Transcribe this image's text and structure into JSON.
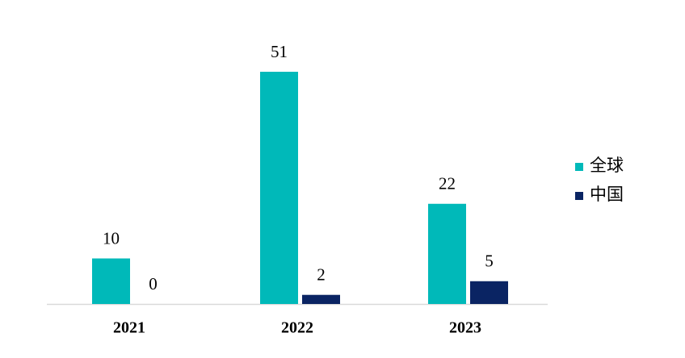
{
  "chart_data": {
    "type": "bar",
    "categories": [
      "2021",
      "2022",
      "2023"
    ],
    "series": [
      {
        "name": "全球",
        "color": "#00b9b9",
        "values": [
          10,
          51,
          22
        ]
      },
      {
        "name": "中国",
        "color": "#0a2463",
        "values": [
          0,
          2,
          5
        ]
      }
    ],
    "legend": "right"
  }
}
